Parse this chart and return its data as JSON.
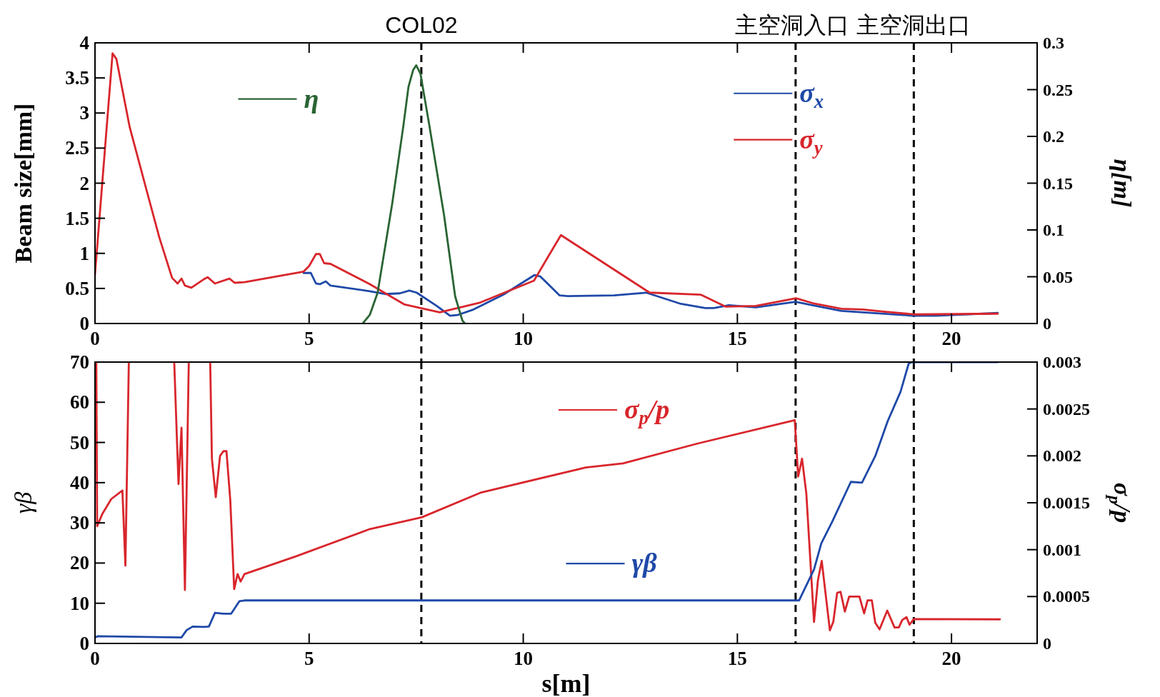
{
  "chart_data": [
    {
      "type": "line",
      "ylabel": "Beam size[mm]",
      "y2label": "η[m]",
      "xlim": [
        0,
        22
      ],
      "xticks": [
        0,
        5,
        10,
        15,
        20
      ],
      "ylim": [
        0,
        4
      ],
      "yticks": [
        0,
        0.5,
        1,
        1.5,
        2,
        2.5,
        3,
        3.5,
        4
      ],
      "y2lim": [
        0,
        0.3
      ],
      "y2ticks": [
        0,
        0.05,
        0.1,
        0.15,
        0.2,
        0.25,
        0.3
      ],
      "legend": "top",
      "grid": false,
      "series": [
        {
          "name": "σ$_{x}$",
          "color": "#1f49a8",
          "x": [
            4.87,
            5.04,
            5.16,
            5.25,
            5.39,
            5.5,
            6.42,
            6.77,
            7.12,
            7.34,
            7.51,
            7.98,
            8.29,
            8.46,
            8.84,
            9.53,
            10.26,
            10.4,
            10.85,
            11.04,
            12.12,
            12.87,
            13.68,
            14.25,
            14.45,
            14.8,
            15.43,
            16.36,
            16.75,
            17.43,
            17.93,
            19.12,
            19.64,
            21.08
          ],
          "values": [
            0.72,
            0.72,
            0.57,
            0.56,
            0.6,
            0.54,
            0.46,
            0.42,
            0.43,
            0.47,
            0.44,
            0.25,
            0.11,
            0.12,
            0.2,
            0.41,
            0.69,
            0.67,
            0.4,
            0.39,
            0.4,
            0.44,
            0.28,
            0.22,
            0.22,
            0.26,
            0.23,
            0.31,
            0.26,
            0.18,
            0.16,
            0.11,
            0.11,
            0.15
          ]
        },
        {
          "name": "σ$_{y}$",
          "color": "#d8262c",
          "x": [
            0,
            0.41,
            0.5,
            0.81,
            1.16,
            1.5,
            1.8,
            1.93,
            2.02,
            2.1,
            2.25,
            2.54,
            2.63,
            2.8,
            3.14,
            3.26,
            3.49,
            4.87,
            5.0,
            5.16,
            5.25,
            5.35,
            5.5,
            6.42,
            7.23,
            8.05,
            9.0,
            10.25,
            10.88,
            12.95,
            14.15,
            14.73,
            15.43,
            16.37,
            16.76,
            17.43,
            17.93,
            18.42,
            19.13,
            21.08
          ],
          "values": [
            0.7,
            3.85,
            3.77,
            2.8,
            2.0,
            1.23,
            0.65,
            0.57,
            0.64,
            0.54,
            0.51,
            0.63,
            0.66,
            0.57,
            0.64,
            0.58,
            0.59,
            0.74,
            0.82,
            0.99,
            0.99,
            0.86,
            0.85,
            0.56,
            0.27,
            0.16,
            0.3,
            0.61,
            1.26,
            0.44,
            0.41,
            0.24,
            0.25,
            0.36,
            0.29,
            0.21,
            0.2,
            0.17,
            0.13,
            0.14
          ]
        },
        {
          "name": "η",
          "color": "#2a6434",
          "axis": "y2",
          "x": [
            6.25,
            6.42,
            6.6,
            6.94,
            7.2,
            7.32,
            7.43,
            7.5,
            7.6,
            7.81,
            8.15,
            8.41,
            8.58,
            8.64
          ],
          "values": [
            0,
            0.0095,
            0.033,
            0.128,
            0.211,
            0.253,
            0.271,
            0.276,
            0.267,
            0.211,
            0.116,
            0.029,
            0.003,
            0
          ]
        }
      ],
      "ref_lines": [
        {
          "axis": "x",
          "value": 7.62,
          "label": "COL02",
          "line_style": "dashed"
        },
        {
          "axis": "x",
          "value": 16.36,
          "label": "主空洞入口",
          "line_style": "dashed"
        },
        {
          "axis": "x",
          "value": 19.12,
          "label": "主空洞出口",
          "line_style": "dashed"
        }
      ]
    },
    {
      "type": "line",
      "xlabel": "s[m]",
      "ylabel": "γβ",
      "y2label": "σ$_{p}$/p",
      "xlim": [
        0,
        22
      ],
      "xticks": [
        0,
        5,
        10,
        15,
        20
      ],
      "ylim": [
        0,
        70
      ],
      "yticks": [
        0,
        10,
        20,
        30,
        40,
        50,
        60,
        70
      ],
      "y2lim": [
        0,
        0.003
      ],
      "y2ticks": [
        0,
        0.0005,
        0.001,
        0.0015,
        0.002,
        0.0025,
        0.003
      ],
      "legend": "top",
      "grid": false,
      "series": [
        {
          "name": "σ$_{p}$/p",
          "color": "#d8262c",
          "axis": "y2",
          "x": [
            0.03,
            0.05,
            0.17,
            0.38,
            0.64,
            0.71,
            0.79,
            0.8,
            1.85,
            1.95,
            2.02,
            2.1,
            2.19,
            2.2,
            2.69,
            2.73,
            2.82,
            2.92,
            3.0,
            3.07,
            3.16,
            3.25,
            3.33,
            3.4,
            3.49,
            4.7,
            6.42,
            7.63,
            9.02,
            11.46,
            12.33,
            14.06,
            16.34,
            16.42,
            16.51,
            16.61,
            16.79,
            16.88,
            16.97,
            17.16,
            17.24,
            17.33,
            17.41,
            17.51,
            17.61,
            17.85,
            17.96,
            18.04,
            18.14,
            18.22,
            18.32,
            18.5,
            18.67,
            18.77,
            18.85,
            18.95,
            19.02,
            19.12,
            21.13
          ],
          "values": [
            0.003,
            0.00125,
            0.00138,
            0.00154,
            0.00163,
            0.00083,
            0.003,
            null,
            0.003,
            0.0017,
            0.0023,
            0.00057,
            0.003,
            null,
            0.003,
            0.00197,
            0.00156,
            0.002,
            0.00205,
            0.00205,
            0.00152,
            0.00058,
            0.00074,
            0.00066,
            0.00074,
            0.00093,
            0.00122,
            0.001345,
            0.00161,
            0.001876,
            0.00192,
            0.00213,
            0.00238,
            0.00178,
            0.00197,
            0.0016,
            0.00023,
            0.00067,
            0.00088,
            0.00014,
            0.00023,
            0.00054,
            0.00055,
            0.00034,
            0.0005,
            0.0005,
            0.00032,
            0.00046,
            0.00046,
            0.00022,
            0.00015,
            0.00035,
            0.00017,
            0.00017,
            0.00025,
            0.00028,
            0.0002,
            0.00026,
            0.000257
          ]
        },
        {
          "name": "γβ",
          "color": "#1f49a8",
          "x": [
            0,
            0.07,
            2.02,
            2.14,
            2.28,
            2.54,
            2.66,
            2.8,
            3.0,
            3.18,
            3.37,
            3.49,
            16.36,
            16.44,
            16.79,
            16.96,
            17.22,
            17.65,
            17.91,
            18.22,
            18.51,
            18.81,
            19.0,
            19.07,
            21.08
          ],
          "values": [
            1.5,
            1.8,
            1.5,
            3.3,
            4.2,
            4.1,
            4.2,
            7.6,
            7.4,
            7.4,
            10.5,
            10.7,
            10.7,
            10.7,
            18.4,
            24.9,
            30.4,
            40.2,
            40,
            46.6,
            55.3,
            62.6,
            69.6,
            70,
            70
          ]
        }
      ],
      "ref_lines": [
        {
          "axis": "x",
          "value": 7.62,
          "line_style": "dashed"
        },
        {
          "axis": "x",
          "value": 16.36,
          "line_style": "dashed"
        },
        {
          "axis": "x",
          "value": 19.12,
          "line_style": "dashed"
        }
      ]
    }
  ]
}
